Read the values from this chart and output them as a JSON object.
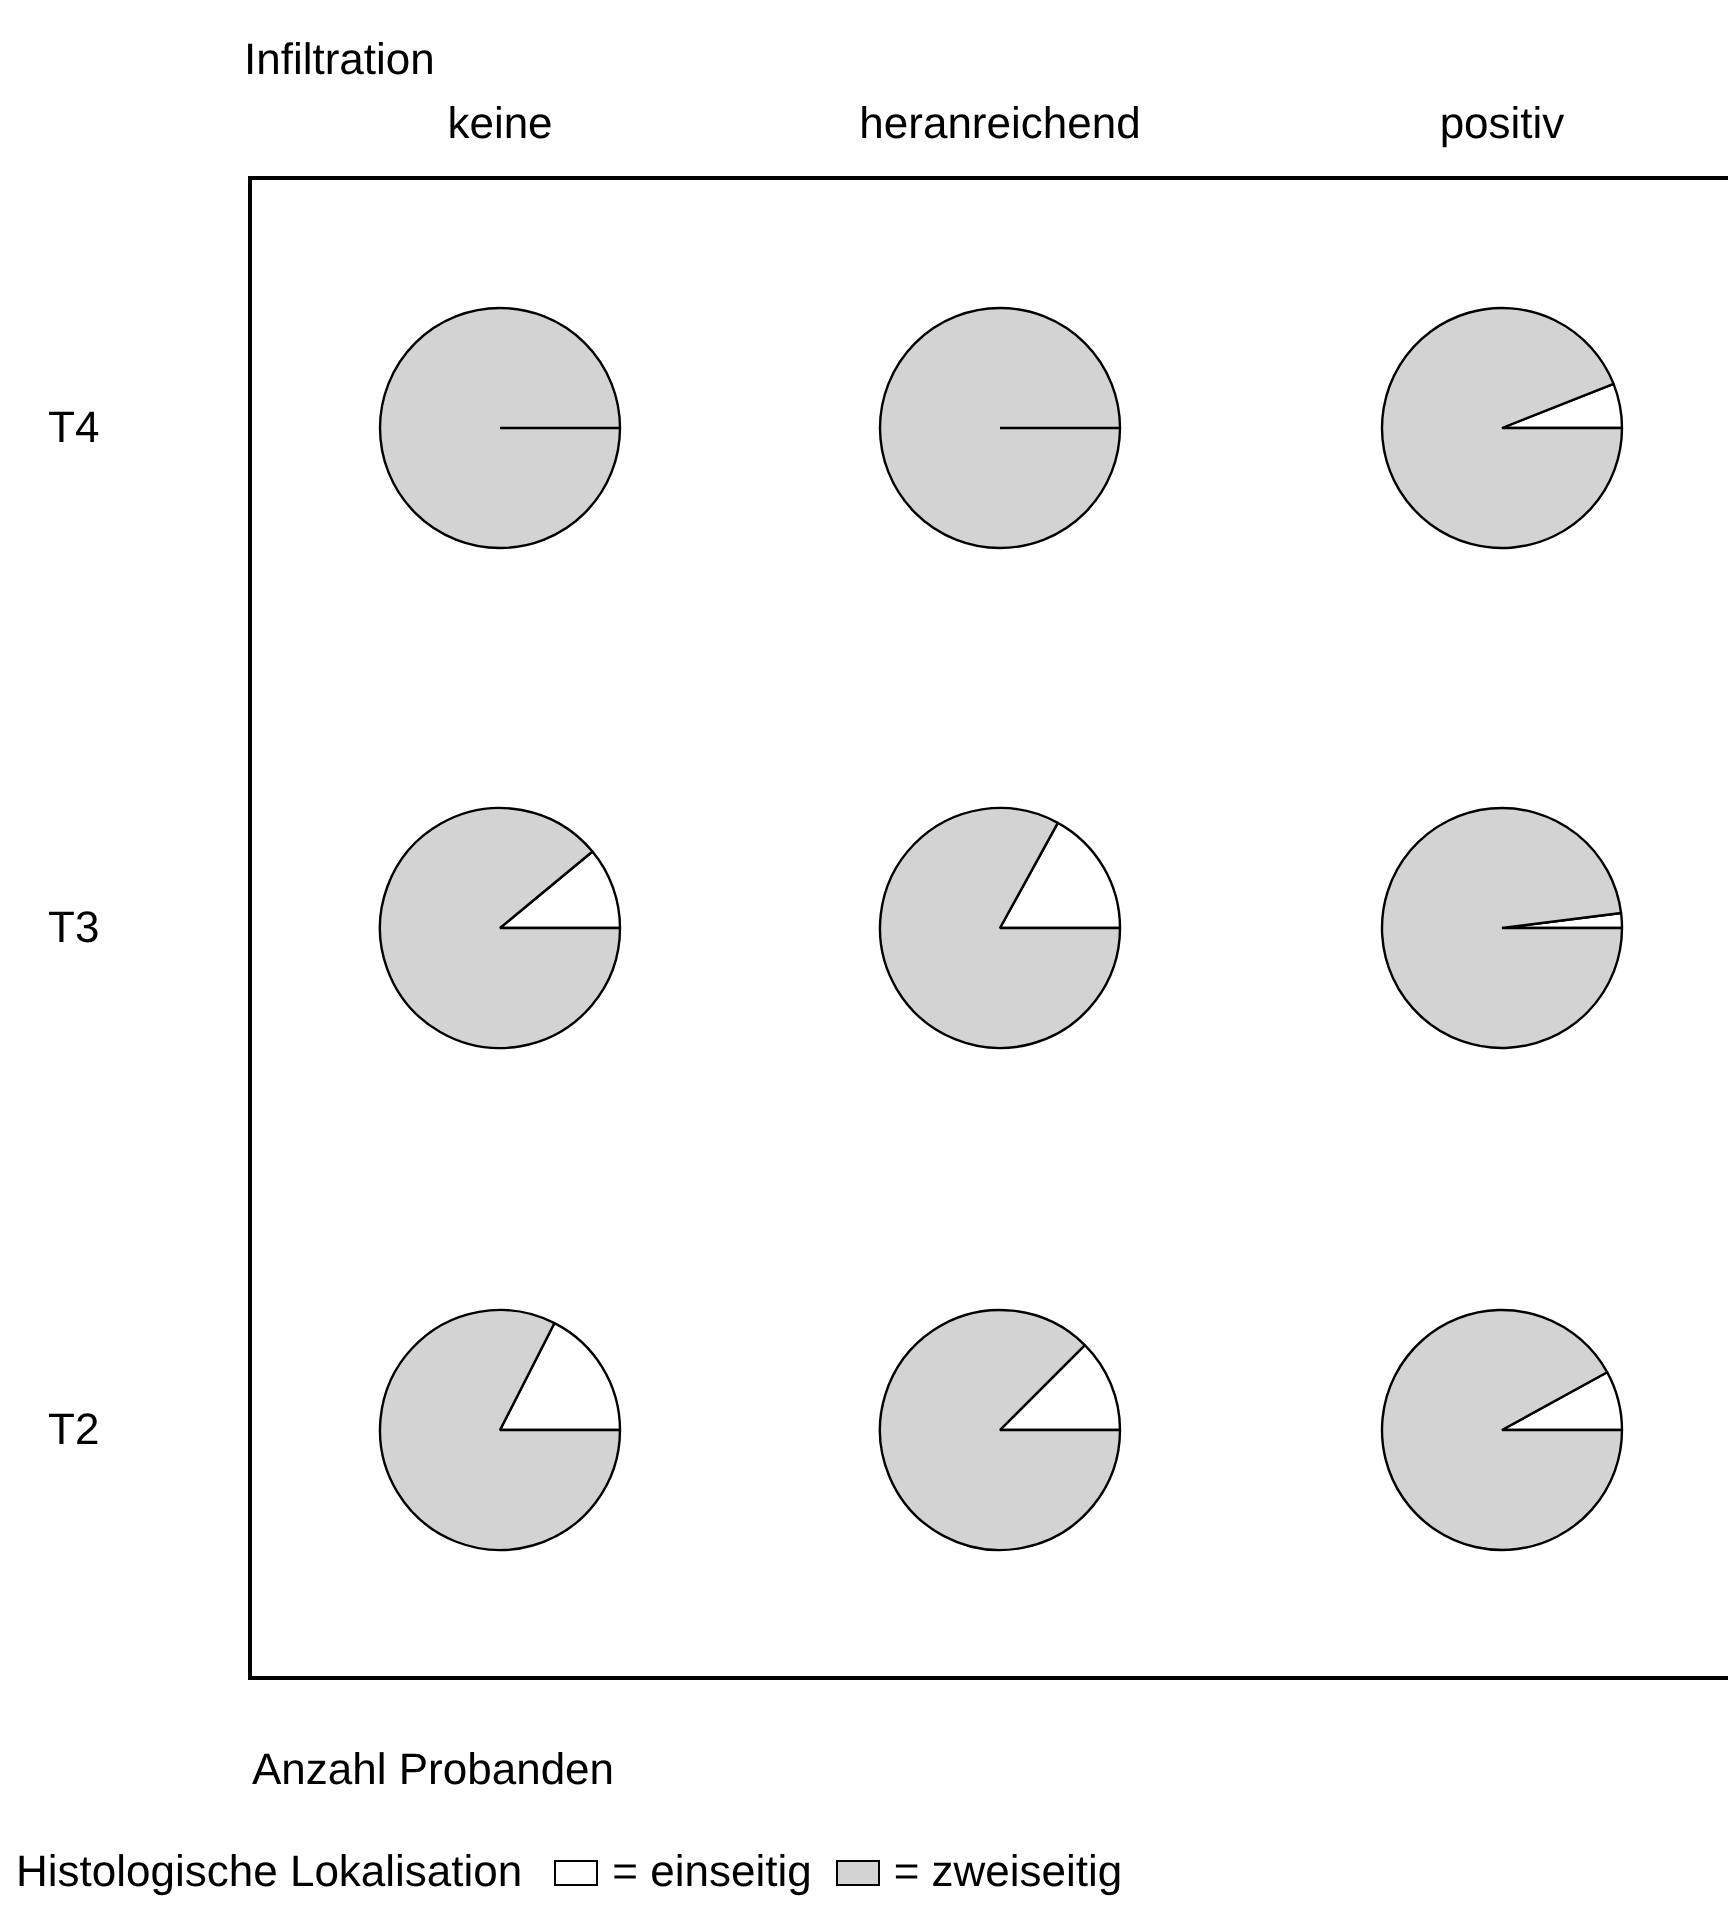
{
  "chart_data": [
    {
      "type": "pie",
      "title": "keine",
      "ylabel": "T4",
      "annotations": [
        "Infiltration",
        "Anzahl Probanden"
      ],
      "legend": "bottom",
      "legend_title": "Histologische Lokalisation",
      "categories": [
        "= einseitig",
        "= zweiseitig"
      ],
      "values": [
        0,
        100
      ],
      "colors": [
        "#ffffff",
        "#d3d3d3"
      ]
    },
    {
      "type": "pie",
      "title": "heranreichend",
      "categories": [
        null,
        null
      ],
      "values": [
        0,
        100
      ],
      "colors": [
        "#ffffff",
        "#d3d3d3"
      ]
    },
    {
      "type": "pie",
      "title": "positiv",
      "categories": [
        null,
        null
      ],
      "values": [
        6,
        94
      ],
      "colors": [
        "#ffffff",
        "#d3d3d3"
      ]
    },
    {
      "type": "pie",
      "ylabel": "T3",
      "categories": [
        null,
        null
      ],
      "values": [
        11,
        89
      ],
      "colors": [
        "#ffffff",
        "#d3d3d3"
      ]
    },
    {
      "type": "pie",
      "categories": [
        null,
        null
      ],
      "values": [
        17,
        83
      ],
      "colors": [
        "#ffffff",
        "#d3d3d3"
      ]
    },
    {
      "type": "pie",
      "categories": [
        null,
        null
      ],
      "values": [
        2,
        98
      ],
      "colors": [
        "#ffffff",
        "#d3d3d3"
      ]
    },
    {
      "type": "pie",
      "ylabel": "T2",
      "categories": [
        null,
        null
      ],
      "values": [
        17.5,
        82.5
      ],
      "colors": [
        "#ffffff",
        "#d3d3d3"
      ]
    },
    {
      "type": "pie",
      "categories": [
        null,
        null
      ],
      "values": [
        12.5,
        87.5
      ],
      "colors": [
        "#ffffff",
        "#d3d3d3"
      ]
    },
    {
      "type": "pie",
      "categories": [
        null,
        null
      ],
      "values": [
        8,
        92
      ],
      "colors": [
        "#ffffff",
        "#d3d3d3"
      ]
    }
  ]
}
